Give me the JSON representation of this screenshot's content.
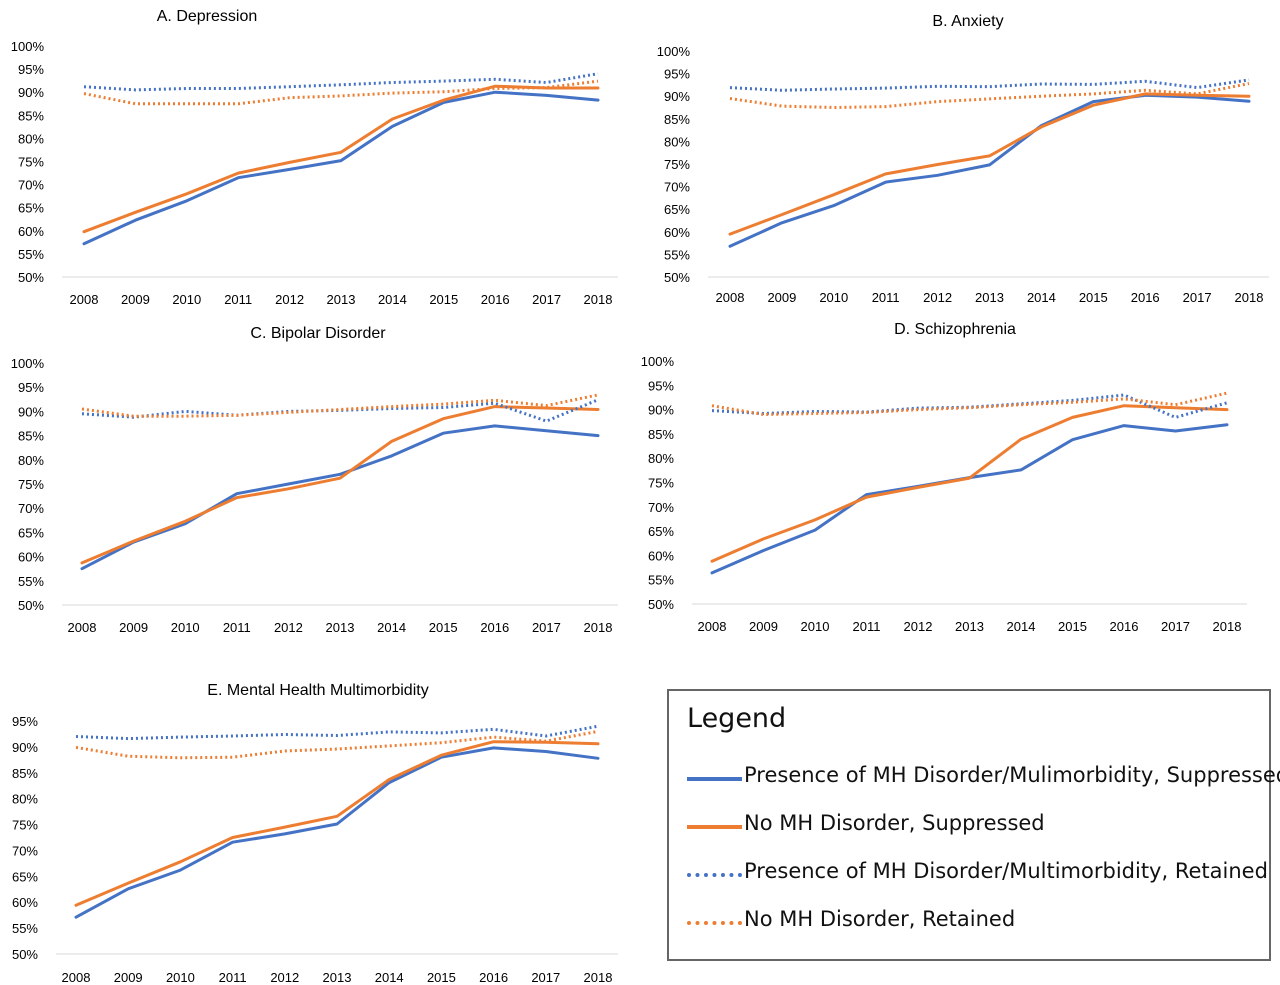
{
  "colors": {
    "blue": "#4472C4",
    "orange": "#ED7D31",
    "axis": "#D9D9D9",
    "text": "#000000"
  },
  "legend": {
    "title": "Legend",
    "items": [
      {
        "label": "Presence of MH Disorder/Mulimorbidity, Suppressed",
        "color": "#4472C4",
        "style": "solid"
      },
      {
        "label": "No MH Disorder, Suppressed",
        "color": "#ED7D31",
        "style": "solid"
      },
      {
        "label": "Presence of MH Disorder/Multimorbidity, Retained",
        "color": "#4472C4",
        "style": "dotted"
      },
      {
        "label": "No MH Disorder,  Retained",
        "color": "#ED7D31",
        "style": "dotted"
      }
    ]
  },
  "chart_data": [
    {
      "type": "line",
      "title": "A. Depression",
      "x": [
        "2008",
        "2009",
        "2010",
        "2011",
        "2012",
        "2013",
        "2014",
        "2015",
        "2016",
        "2017",
        "2018"
      ],
      "y_ticks": [
        "50%",
        "55%",
        "60%",
        "65%",
        "70%",
        "75%",
        "80%",
        "85%",
        "90%",
        "95%",
        "100%"
      ],
      "ylim": [
        50,
        100
      ],
      "series": [
        {
          "style": "solid",
          "color": "#4472C4",
          "values": [
            57.2,
            62.3,
            66.5,
            71.5,
            73.3,
            75.2,
            82.6,
            87.8,
            90.0,
            89.3,
            88.3
          ]
        },
        {
          "style": "solid",
          "color": "#ED7D31",
          "values": [
            59.8,
            64.0,
            68.0,
            72.5,
            74.8,
            77.0,
            84.2,
            88.3,
            91.3,
            90.9,
            90.9
          ]
        },
        {
          "style": "dotted",
          "color": "#4472C4",
          "values": [
            91.2,
            90.5,
            90.8,
            90.8,
            91.2,
            91.6,
            92.1,
            92.4,
            92.8,
            92.1,
            94.0
          ]
        },
        {
          "style": "dotted",
          "color": "#ED7D31",
          "values": [
            89.7,
            87.5,
            87.5,
            87.5,
            88.8,
            89.2,
            89.8,
            90.1,
            90.8,
            91.0,
            92.4
          ]
        }
      ]
    },
    {
      "type": "line",
      "title": "B. Anxiety",
      "x": [
        "2008",
        "2009",
        "2010",
        "2011",
        "2012",
        "2013",
        "2014",
        "2015",
        "2016",
        "2017",
        "2018"
      ],
      "y_ticks": [
        "50%",
        "55%",
        "60%",
        "65%",
        "70%",
        "75%",
        "80%",
        "85%",
        "90%",
        "95%",
        "100%"
      ],
      "ylim": [
        50,
        100
      ],
      "series": [
        {
          "style": "solid",
          "color": "#4472C4",
          "values": [
            56.8,
            62.0,
            65.8,
            71.0,
            72.5,
            74.8,
            83.5,
            88.8,
            90.2,
            89.8,
            88.9
          ]
        },
        {
          "style": "solid",
          "color": "#ED7D31",
          "values": [
            59.5,
            63.8,
            68.2,
            72.8,
            74.9,
            76.8,
            83.2,
            88.0,
            90.5,
            90.2,
            90.0
          ]
        },
        {
          "style": "dotted",
          "color": "#4472C4",
          "values": [
            91.9,
            91.3,
            91.6,
            91.8,
            92.2,
            92.1,
            92.7,
            92.6,
            93.3,
            91.9,
            93.6
          ]
        },
        {
          "style": "dotted",
          "color": "#ED7D31",
          "values": [
            89.5,
            87.8,
            87.5,
            87.7,
            88.8,
            89.4,
            90.0,
            90.5,
            91.3,
            90.5,
            92.8
          ]
        }
      ]
    },
    {
      "type": "line",
      "title": "C. Bipolar Disorder",
      "x": [
        "2008",
        "2009",
        "2010",
        "2011",
        "2012",
        "2013",
        "2014",
        "2015",
        "2016",
        "2017",
        "2018"
      ],
      "y_ticks": [
        "50%",
        "55%",
        "60%",
        "65%",
        "70%",
        "75%",
        "80%",
        "85%",
        "90%",
        "95%",
        "100%"
      ],
      "ylim": [
        50,
        100
      ],
      "series": [
        {
          "style": "solid",
          "color": "#4472C4",
          "values": [
            57.5,
            63.0,
            66.8,
            73.0,
            75.0,
            77.0,
            80.8,
            85.5,
            87.0,
            86.0,
            85.0
          ]
        },
        {
          "style": "solid",
          "color": "#ED7D31",
          "values": [
            58.7,
            63.2,
            67.3,
            72.2,
            74.0,
            76.2,
            83.8,
            88.5,
            91.0,
            90.7,
            90.4
          ]
        },
        {
          "style": "dotted",
          "color": "#4472C4",
          "values": [
            89.5,
            88.8,
            90.0,
            89.2,
            90.0,
            90.2,
            90.6,
            90.8,
            91.7,
            88.0,
            92.4
          ]
        },
        {
          "style": "dotted",
          "color": "#ED7D31",
          "values": [
            90.5,
            89.0,
            89.0,
            89.2,
            89.8,
            90.4,
            91.0,
            91.5,
            92.3,
            91.2,
            93.4
          ]
        }
      ]
    },
    {
      "type": "line",
      "title": "D. Schizophrenia",
      "x": [
        "2008",
        "2009",
        "2010",
        "2011",
        "2012",
        "2013",
        "2014",
        "2015",
        "2016",
        "2017",
        "2018"
      ],
      "y_ticks": [
        "50%",
        "55%",
        "60%",
        "65%",
        "70%",
        "75%",
        "80%",
        "85%",
        "90%",
        "95%",
        "100%"
      ],
      "ylim": [
        50,
        100
      ],
      "series": [
        {
          "style": "solid",
          "color": "#4472C4",
          "values": [
            56.4,
            61.0,
            65.2,
            72.5,
            74.2,
            76.0,
            77.6,
            83.8,
            86.7,
            85.6,
            86.9
          ]
        },
        {
          "style": "solid",
          "color": "#ED7D31",
          "values": [
            58.8,
            63.4,
            67.3,
            72.0,
            74.0,
            75.9,
            83.9,
            88.4,
            90.8,
            90.4,
            90.0
          ]
        },
        {
          "style": "dotted",
          "color": "#4472C4",
          "values": [
            89.8,
            89.2,
            89.6,
            89.5,
            90.3,
            90.5,
            91.2,
            91.9,
            93.0,
            88.4,
            91.4
          ]
        },
        {
          "style": "dotted",
          "color": "#ED7D31",
          "values": [
            90.8,
            89.0,
            89.2,
            89.4,
            90.0,
            90.4,
            91.0,
            91.5,
            92.2,
            91.0,
            93.4
          ]
        }
      ]
    },
    {
      "type": "line",
      "title": "E. Mental Health Multimorbidity",
      "x": [
        "2008",
        "2009",
        "2010",
        "2011",
        "2012",
        "2013",
        "2014",
        "2015",
        "2016",
        "2017",
        "2018"
      ],
      "y_ticks": [
        "50%",
        "55%",
        "60%",
        "65%",
        "70%",
        "75%",
        "80%",
        "85%",
        "90%",
        "95%"
      ],
      "ylim": [
        50,
        95
      ],
      "series": [
        {
          "style": "solid",
          "color": "#4472C4",
          "values": [
            57.1,
            62.6,
            66.2,
            71.6,
            73.2,
            75.1,
            83.1,
            88.0,
            89.8,
            89.1,
            87.8
          ]
        },
        {
          "style": "solid",
          "color": "#ED7D31",
          "values": [
            59.4,
            63.7,
            67.8,
            72.5,
            74.5,
            76.6,
            83.7,
            88.4,
            91.0,
            90.9,
            90.6
          ]
        },
        {
          "style": "dotted",
          "color": "#4472C4",
          "values": [
            92.0,
            91.6,
            91.9,
            92.1,
            92.4,
            92.2,
            92.9,
            92.7,
            93.4,
            92.1,
            94.0
          ]
        },
        {
          "style": "dotted",
          "color": "#ED7D31",
          "values": [
            89.9,
            88.2,
            87.9,
            88.0,
            89.2,
            89.6,
            90.2,
            90.8,
            91.9,
            91.1,
            93.0
          ]
        }
      ]
    }
  ]
}
